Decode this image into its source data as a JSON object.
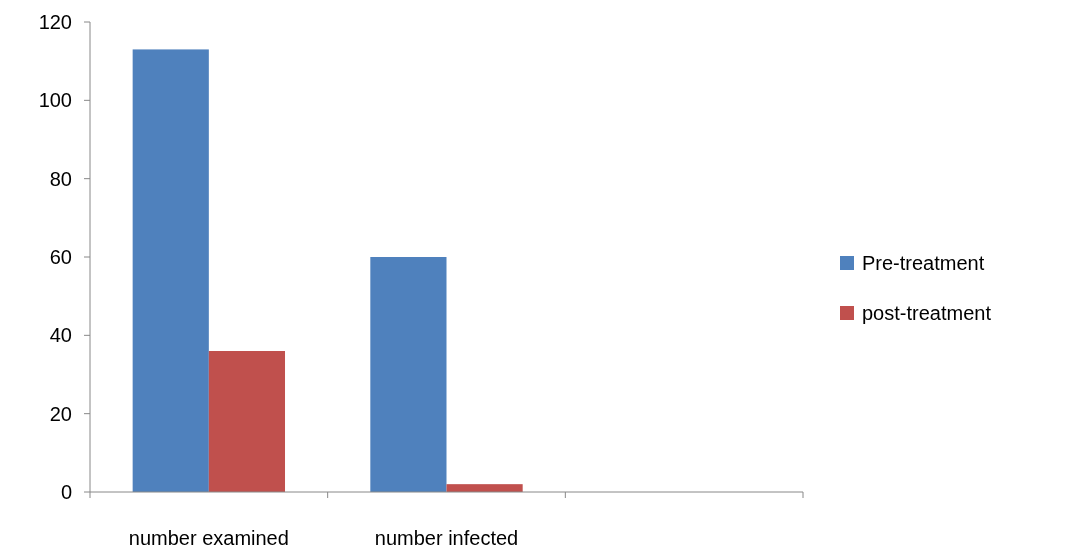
{
  "chart_data": {
    "type": "bar",
    "categories": [
      "number examined",
      "number infected",
      null
    ],
    "series": [
      {
        "name": "Pre-treatment",
        "color": "#4f81bd",
        "values": [
          113,
          60,
          null
        ]
      },
      {
        "name": "post-treatment",
        "color": "#c0504d",
        "values": [
          36,
          2,
          null
        ]
      }
    ],
    "ylim": [
      0,
      120
    ],
    "yticks": [
      0,
      20,
      40,
      60,
      80,
      100,
      120
    ],
    "grid": false,
    "legend": "right"
  }
}
